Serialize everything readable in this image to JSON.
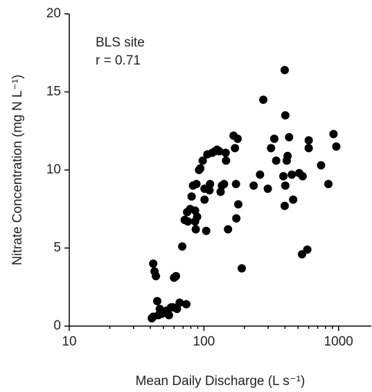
{
  "chart_data": {
    "type": "scatter",
    "xlabel": "Mean Daily Discharge (L s⁻¹)",
    "ylabel": "Nitrate Concentration (mg N L⁻¹)",
    "annotations": [
      "BLS site",
      "r = 0.71"
    ],
    "xscale": "log",
    "xlim": [
      10,
      1750
    ],
    "xticks": [
      10,
      100,
      1000
    ],
    "minor_xticks": [
      20,
      30,
      40,
      50,
      60,
      70,
      80,
      90,
      200,
      300,
      400,
      500,
      600,
      700,
      800,
      900
    ],
    "ylim": [
      0,
      20
    ],
    "yticks": [
      0,
      5,
      10,
      15,
      20
    ],
    "grid": false,
    "color": "#000000",
    "x": [
      42,
      43,
      44,
      41,
      42,
      45,
      46,
      47,
      49,
      50,
      53,
      55,
      57,
      60,
      62,
      63,
      66,
      74,
      59,
      69,
      72,
      75,
      76,
      79,
      81,
      83,
      86,
      86,
      87,
      88,
      89,
      92,
      94,
      98,
      101,
      101,
      104,
      106,
      110,
      111,
      115,
      121,
      125,
      130,
      133,
      136,
      141,
      145,
      146,
      151,
      166,
      170,
      173,
      174,
      178,
      180,
      191,
      234,
      261,
      276,
      298,
      315,
      333,
      344,
      389,
      398,
      402,
      398,
      402,
      412,
      418,
      429,
      449,
      460,
      510,
      535,
      541,
      586,
      600,
      600,
      741,
      840,
      917,
      962
    ],
    "values": [
      4.0,
      3.5,
      3.2,
      0.5,
      0.6,
      1.6,
      0.7,
      1.1,
      0.8,
      0.9,
      1.0,
      0.7,
      1.2,
      3.1,
      3.2,
      1.1,
      1.5,
      1.4,
      1.2,
      5.1,
      6.8,
      7.3,
      6.7,
      7.5,
      8.3,
      9.0,
      7.4,
      6.7,
      6.2,
      9.1,
      7.0,
      10.0,
      10.1,
      10.6,
      8.1,
      8.8,
      6.1,
      11.0,
      8.7,
      9.1,
      11.1,
      11.2,
      11.3,
      11.2,
      8.6,
      9.0,
      9.1,
      11.1,
      10.6,
      6.2,
      12.2,
      11.4,
      9.1,
      6.9,
      12.0,
      7.8,
      3.7,
      9.0,
      9.7,
      14.5,
      8.8,
      11.4,
      12.0,
      10.6,
      9.6,
      16.4,
      13.5,
      7.7,
      9.0,
      10.6,
      10.9,
      12.1,
      9.7,
      8.1,
      9.8,
      4.6,
      9.6,
      4.9,
      11.9,
      11.4,
      10.3,
      9.1,
      12.3,
      11.5
    ]
  }
}
